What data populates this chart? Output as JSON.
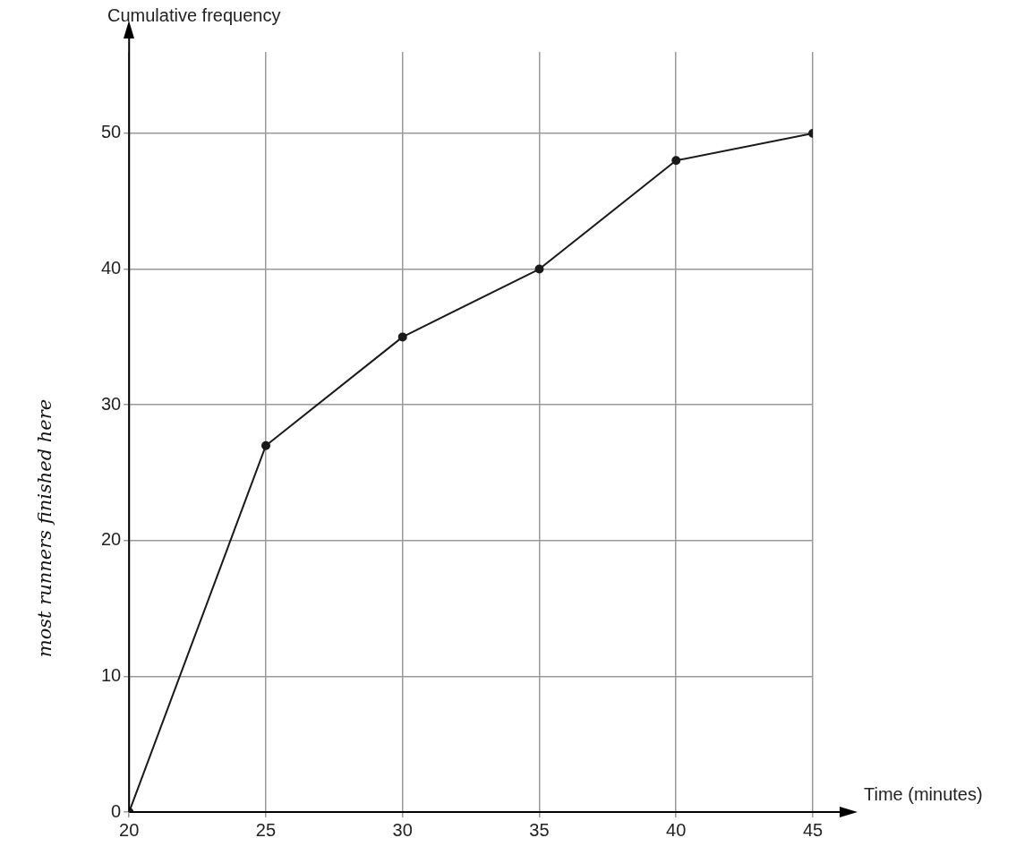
{
  "chart_data": {
    "type": "line",
    "xlabel": "Time (minutes)",
    "ylabel": "Cumulative frequency",
    "x": [
      20,
      25,
      30,
      35,
      40,
      45
    ],
    "series": [
      {
        "color": "#1a1a1a",
        "values": [
          0,
          27,
          35,
          40,
          48,
          50
        ]
      }
    ],
    "xlim": [
      20,
      45
    ],
    "xticks": [
      20,
      25,
      30,
      35,
      40,
      45
    ],
    "ylim": [
      0,
      56
    ],
    "yticks": [
      0,
      10,
      20,
      30,
      40,
      50
    ],
    "grid": true,
    "marker": "circle",
    "line_style": "solid",
    "legend": false,
    "annotations": [
      "most runners finished here"
    ]
  }
}
